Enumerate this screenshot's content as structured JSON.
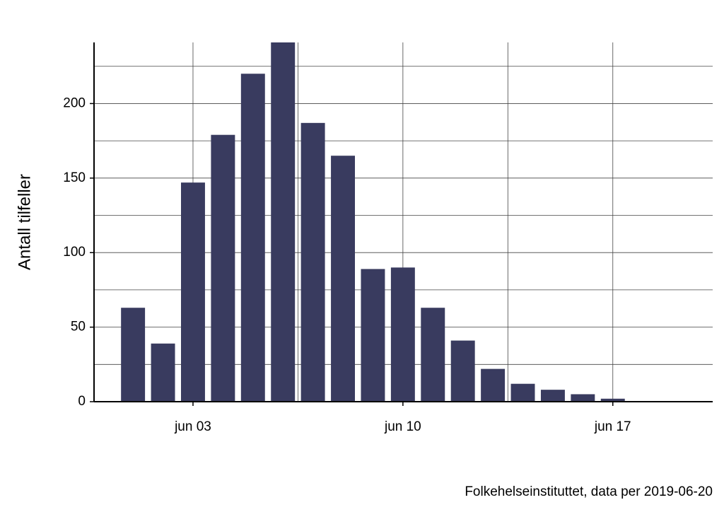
{
  "chart_data": {
    "type": "bar",
    "y_label": "Antall tilfeller",
    "caption": "Folkehelseinstituttet, data per 2019-06-20",
    "x": [
      1,
      2,
      3,
      4,
      5,
      6,
      7,
      8,
      9,
      10,
      11,
      12,
      13,
      14,
      15,
      16,
      17
    ],
    "values": [
      63,
      39,
      147,
      179,
      220,
      241,
      187,
      165,
      89,
      90,
      63,
      41,
      22,
      12,
      8,
      5,
      2
    ],
    "color": "#393b5f",
    "xlim": [
      -0.3,
      20.33
    ],
    "xticks": [
      {
        "value": 3,
        "label": "jun 03"
      },
      {
        "value": 10,
        "label": "jun 10"
      },
      {
        "value": 17,
        "label": "jun 17"
      }
    ],
    "minor_xticks": [
      6.5,
      13.5
    ],
    "ylim": [
      0,
      241
    ],
    "yticks": [
      0,
      50,
      100,
      150,
      200
    ],
    "minor_yticks": [
      25,
      75,
      125,
      175,
      225
    ],
    "grid": true
  }
}
